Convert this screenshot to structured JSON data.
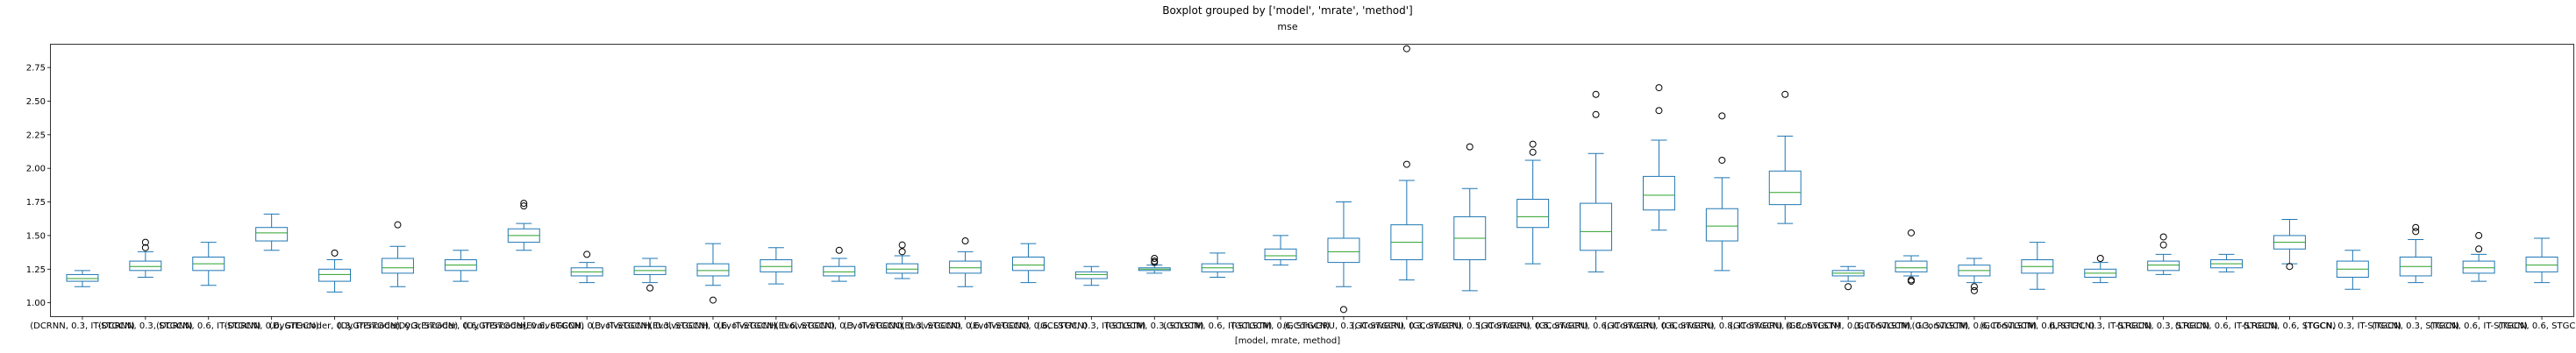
{
  "suptitle": "Boxplot grouped by ['model', 'mrate', 'method']",
  "chart_data": {
    "type": "box",
    "title": "mse",
    "xlabel": "[model, mrate, method]",
    "ylabel": "",
    "ylim": [
      0.9,
      2.92
    ],
    "yticks": [
      "1.00",
      "1.25",
      "1.50",
      "1.75",
      "2.00",
      "2.25",
      "2.50",
      "2.75"
    ],
    "grid": false,
    "colors": {
      "box": "#1f77b4",
      "median": "#2ca02c",
      "flier": "#000000"
    },
    "categories": [
      "(DCRNN, 0.3, IT-STGCN)",
      "(DCRNN, 0.3, STGCN)",
      "(DCRNN, 0.6, IT-STGCN)",
      "(DCRNN, 0.6, STGCN)",
      "(DyGrEncoder, 0.3, IT-STGCN)",
      "(DyGrEncoder, 0.3, STGCN)",
      "(DyGrEncoder, 0.6, IT-STGCN)",
      "(DyGrEncoder, 0.6, STGCN)",
      "(EvolveGCNH, 0.3, IT-STGCN)",
      "(EvolveGCNH, 0.3, STGCN)",
      "(EvolveGCNH, 0.6, IT-STGCN)",
      "(EvolveGCNH, 0.6, STGCN)",
      "(EvolveGCNO, 0.3, IT-STGCN)",
      "(EvolveGCNO, 0.3, STGCN)",
      "(EvolveGCNO, 0.6, IT-STGCN)",
      "(EvolveGCNO, 0.6, STGCN)",
      "(GCLSTM, 0.3, IT-STGCN)",
      "(GCLSTM, 0.3, STGCN)",
      "(GCLSTM, 0.6, IT-STGCN)",
      "(GCLSTM, 0.6, STGCN)",
      "(GConvGRU, 0.3, IT-STGCN)",
      "(GConvGRU, 0.3, STGCN)",
      "(GConvGRU, 0.5, IT-STGCN)",
      "(GConvGRU, 0.5, STGCN)",
      "(GConvGRU, 0.6, IT-STGCN)",
      "(GConvGRU, 0.6, STGCN)",
      "(GConvGRU, 0.8, IT-STGCN)",
      "(GConvGRU, 0.8, STGCN)",
      "(GConvLSTM, 0.3, IT-STGCN)",
      "(GConvLSTM, 0.3, STGCN)",
      "(GConvLSTM, 0.6, IT-STGCN)",
      "(GConvLSTM, 0.6, STGCN)",
      "(LRGCN, 0.3, IT-STGCN)",
      "(LRGCN, 0.3, STGCN)",
      "(LRGCN, 0.6, IT-STGCN)",
      "(LRGCN, 0.6, STGCN)",
      "(TGCN, 0.3, IT-STGCN)",
      "(TGCN, 0.3, STGCN)",
      "(TGCN, 0.6, IT-STGCN)",
      "(TGCN, 0.6, STGCN)"
    ],
    "tick_labels": [
      "(DCRNN, 0.3, IT-STGCN)",
      "(DCRNN, 0.3, STGCN)",
      "(DCRNN, 0.6, IT-STGCN)",
      "(DCRNN, 0.6, STGCN)",
      "(DyGrEncoder, 0.3, IT-STGCN)",
      "(DyGrEncoder, 0.3, STGCN)",
      "(DyGrEncoder, 0.6, IT-STGCN)",
      "(DyGrEncoder, 0.6, STGCN)",
      "(EvolveGCNH, 0.3, IT-STGCN)",
      "(EvolveGCNH, 0.3, STGCN)",
      "(EvolveGCNH, 0.6, IT-STGCN)",
      "(EvolveGCNH, 0.6, STGCN)",
      "(EvolveGCNO, 0.3, IT-STGCN)",
      "(EvolveGCNO, 0.3, STGCN)",
      "(EvolveGCNO, 0.6, IT-STGCN)",
      "(EvolveGCNO, 0.6, STGCN)",
      "(GCLSTM, 0.3, IT-STGCN)",
      "(GCLSTM, 0.3, STGCN)",
      "(GCLSTM, 0.6, IT-STGCN)",
      "(GCLSTM, 0.6, STGCN)",
      "(GConvGRU, 0.3, IT-STGCN)",
      "(GConvGRU, 0.3, STGCN)",
      "(GConvGRU, 0.5, IT-STGCN)",
      "(GConvGRU, 0.5, STGCN)",
      "(GConvGRU, 0.6, IT-STGCN)",
      "(GConvGRU, 0.6, STGCN)",
      "(GConvGRU, 0.8, IT-STGCN)",
      "(GConvGRU, 0.8, STGCN)",
      "(GConvLSTM, 0.3, IT-STGCN)",
      "(GConvLSTM, 0.3, STGCN)",
      "(GConvLSTM, 0.6, IT-STGCN)",
      "(GConvLSTM, 0.6, STGCN)",
      "(LRGCN, 0.3, IT-STGCN)",
      "(LRGCN, 0.3, STGCN)",
      "(LRGCN, 0.6, IT-STGCN)",
      "(LRGCN, 0.6, STGCN)",
      "(TGCN, 0.3, IT-STGCN)",
      "(TGCN, 0.3, STGCN)",
      "(TGCN, 0.6, IT-STGCN)",
      "(TGCN, 0.6, STGCN)"
    ],
    "boxes": [
      {
        "whislo": 1.12,
        "q1": 1.16,
        "med": 1.18,
        "q3": 1.21,
        "whishi": 1.24,
        "fliers": []
      },
      {
        "whislo": 1.19,
        "q1": 1.24,
        "med": 1.27,
        "q3": 1.31,
        "whishi": 1.38,
        "fliers": [
          1.41,
          1.45
        ]
      },
      {
        "whislo": 1.13,
        "q1": 1.24,
        "med": 1.29,
        "q3": 1.34,
        "whishi": 1.45,
        "fliers": []
      },
      {
        "whislo": 1.39,
        "q1": 1.46,
        "med": 1.52,
        "q3": 1.56,
        "whishi": 1.66,
        "fliers": []
      },
      {
        "whislo": 1.08,
        "q1": 1.16,
        "med": 1.21,
        "q3": 1.25,
        "whishi": 1.32,
        "fliers": [
          1.37
        ]
      },
      {
        "whislo": 1.12,
        "q1": 1.22,
        "med": 1.26,
        "q3": 1.33,
        "whishi": 1.42,
        "fliers": [
          1.58
        ]
      },
      {
        "whislo": 1.16,
        "q1": 1.24,
        "med": 1.28,
        "q3": 1.32,
        "whishi": 1.39,
        "fliers": []
      },
      {
        "whislo": 1.39,
        "q1": 1.45,
        "med": 1.5,
        "q3": 1.55,
        "whishi": 1.59,
        "fliers": [
          1.72,
          1.74
        ]
      },
      {
        "whislo": 1.15,
        "q1": 1.2,
        "med": 1.23,
        "q3": 1.26,
        "whishi": 1.3,
        "fliers": [
          1.36
        ]
      },
      {
        "whislo": 1.15,
        "q1": 1.21,
        "med": 1.24,
        "q3": 1.27,
        "whishi": 1.33,
        "fliers": [
          1.11
        ]
      },
      {
        "whislo": 1.13,
        "q1": 1.2,
        "med": 1.24,
        "q3": 1.29,
        "whishi": 1.44,
        "fliers": [
          1.02
        ]
      },
      {
        "whislo": 1.14,
        "q1": 1.23,
        "med": 1.27,
        "q3": 1.32,
        "whishi": 1.41,
        "fliers": []
      },
      {
        "whislo": 1.16,
        "q1": 1.2,
        "med": 1.23,
        "q3": 1.27,
        "whishi": 1.33,
        "fliers": [
          1.39
        ]
      },
      {
        "whislo": 1.18,
        "q1": 1.22,
        "med": 1.25,
        "q3": 1.29,
        "whishi": 1.35,
        "fliers": [
          1.38,
          1.43
        ]
      },
      {
        "whislo": 1.12,
        "q1": 1.22,
        "med": 1.26,
        "q3": 1.31,
        "whishi": 1.38,
        "fliers": [
          1.46
        ]
      },
      {
        "whislo": 1.15,
        "q1": 1.24,
        "med": 1.28,
        "q3": 1.34,
        "whishi": 1.44,
        "fliers": []
      },
      {
        "whislo": 1.13,
        "q1": 1.18,
        "med": 1.21,
        "q3": 1.23,
        "whishi": 1.27,
        "fliers": []
      },
      {
        "whislo": 1.22,
        "q1": 1.24,
        "med": 1.25,
        "q3": 1.26,
        "whishi": 1.28,
        "fliers": [
          1.3,
          1.31,
          1.33
        ]
      },
      {
        "whislo": 1.19,
        "q1": 1.23,
        "med": 1.26,
        "q3": 1.29,
        "whishi": 1.37,
        "fliers": []
      },
      {
        "whislo": 1.28,
        "q1": 1.32,
        "med": 1.35,
        "q3": 1.4,
        "whishi": 1.5,
        "fliers": []
      },
      {
        "whislo": 1.12,
        "q1": 1.3,
        "med": 1.38,
        "q3": 1.48,
        "whishi": 1.75,
        "fliers": [
          0.95
        ]
      },
      {
        "whislo": 1.17,
        "q1": 1.32,
        "med": 1.45,
        "q3": 1.58,
        "whishi": 1.91,
        "fliers": [
          2.03,
          2.89
        ]
      },
      {
        "whislo": 1.09,
        "q1": 1.32,
        "med": 1.48,
        "q3": 1.64,
        "whishi": 1.85,
        "fliers": [
          2.16
        ]
      },
      {
        "whislo": 1.29,
        "q1": 1.56,
        "med": 1.64,
        "q3": 1.77,
        "whishi": 2.06,
        "fliers": [
          2.12,
          2.18
        ]
      },
      {
        "whislo": 1.23,
        "q1": 1.39,
        "med": 1.53,
        "q3": 1.74,
        "whishi": 2.11,
        "fliers": [
          2.4,
          2.55
        ]
      },
      {
        "whislo": 1.54,
        "q1": 1.69,
        "med": 1.8,
        "q3": 1.94,
        "whishi": 2.21,
        "fliers": [
          2.43,
          2.6
        ]
      },
      {
        "whislo": 1.24,
        "q1": 1.46,
        "med": 1.57,
        "q3": 1.7,
        "whishi": 1.93,
        "fliers": [
          2.06,
          2.39
        ]
      },
      {
        "whislo": 1.59,
        "q1": 1.73,
        "med": 1.82,
        "q3": 1.98,
        "whishi": 2.24,
        "fliers": [
          2.55
        ]
      },
      {
        "whislo": 1.16,
        "q1": 1.2,
        "med": 1.22,
        "q3": 1.24,
        "whishi": 1.27,
        "fliers": [
          1.12
        ]
      },
      {
        "whislo": 1.2,
        "q1": 1.23,
        "med": 1.26,
        "q3": 1.31,
        "whishi": 1.35,
        "fliers": [
          1.16,
          1.17,
          1.52
        ]
      },
      {
        "whislo": 1.15,
        "q1": 1.2,
        "med": 1.24,
        "q3": 1.28,
        "whishi": 1.33,
        "fliers": [
          1.09,
          1.12
        ]
      },
      {
        "whislo": 1.1,
        "q1": 1.22,
        "med": 1.27,
        "q3": 1.32,
        "whishi": 1.45,
        "fliers": []
      },
      {
        "whislo": 1.15,
        "q1": 1.19,
        "med": 1.22,
        "q3": 1.25,
        "whishi": 1.3,
        "fliers": [
          1.33
        ]
      },
      {
        "whislo": 1.21,
        "q1": 1.24,
        "med": 1.28,
        "q3": 1.31,
        "whishi": 1.36,
        "fliers": [
          1.43,
          1.49
        ]
      },
      {
        "whislo": 1.23,
        "q1": 1.26,
        "med": 1.29,
        "q3": 1.32,
        "whishi": 1.36,
        "fliers": []
      },
      {
        "whislo": 1.29,
        "q1": 1.4,
        "med": 1.45,
        "q3": 1.5,
        "whishi": 1.62,
        "fliers": [
          1.27
        ]
      },
      {
        "whislo": 1.1,
        "q1": 1.19,
        "med": 1.25,
        "q3": 1.31,
        "whishi": 1.39,
        "fliers": []
      },
      {
        "whislo": 1.15,
        "q1": 1.2,
        "med": 1.27,
        "q3": 1.34,
        "whishi": 1.47,
        "fliers": [
          1.53,
          1.56
        ]
      },
      {
        "whislo": 1.16,
        "q1": 1.22,
        "med": 1.26,
        "q3": 1.31,
        "whishi": 1.36,
        "fliers": [
          1.4,
          1.5
        ]
      },
      {
        "whislo": 1.15,
        "q1": 1.23,
        "med": 1.28,
        "q3": 1.34,
        "whishi": 1.48,
        "fliers": []
      }
    ]
  }
}
